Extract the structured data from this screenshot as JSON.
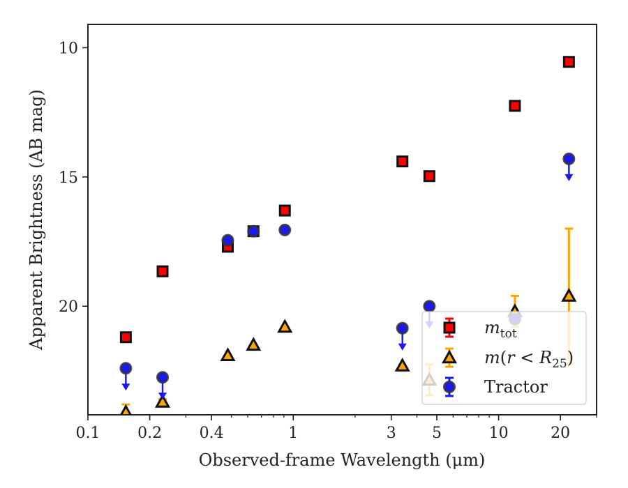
{
  "chart_data": {
    "type": "scatter",
    "xlabel": "Observed-frame Wavelength (μm)",
    "ylabel": "Apparent Brightness (AB mag)",
    "x_scale": "log",
    "xlim": [
      0.1,
      30
    ],
    "ylim": [
      24.2,
      9.1
    ],
    "x_ticks": [
      {
        "value": 0.1,
        "label": "0.1"
      },
      {
        "value": 0.2,
        "label": "0.2"
      },
      {
        "value": 0.4,
        "label": "0.4"
      },
      {
        "value": 1,
        "label": "1"
      },
      {
        "value": 3,
        "label": "3"
      },
      {
        "value": 5,
        "label": "5"
      },
      {
        "value": 10,
        "label": "10"
      },
      {
        "value": 20,
        "label": "20"
      }
    ],
    "y_ticks": [
      {
        "value": 10,
        "label": "10"
      },
      {
        "value": 15,
        "label": "15"
      },
      {
        "value": 20,
        "label": "20"
      }
    ],
    "grid": false,
    "legend_position": "lower-right",
    "series": [
      {
        "name": "m_tot",
        "legend_label": "m",
        "legend_sub": "tot",
        "marker": "square",
        "color": "#ff0000",
        "edge": "#111111",
        "points": [
          {
            "x": 0.153,
            "y": 21.2
          },
          {
            "x": 0.231,
            "y": 18.65
          },
          {
            "x": 0.48,
            "y": 17.7
          },
          {
            "x": 0.64,
            "y": 17.1
          },
          {
            "x": 0.91,
            "y": 16.3
          },
          {
            "x": 3.4,
            "y": 14.4
          },
          {
            "x": 4.6,
            "y": 14.97
          },
          {
            "x": 12.0,
            "y": 12.25
          },
          {
            "x": 22.0,
            "y": 10.55
          }
        ]
      },
      {
        "name": "m(r < R25)",
        "legend_label": "m(r < R",
        "legend_sub": "25",
        "marker": "triangle",
        "color": "#ffa500",
        "edge": "#111111",
        "points": [
          {
            "x": 0.153,
            "y": 24.1,
            "yerr": 0.3
          },
          {
            "x": 0.231,
            "y": 23.7,
            "yerr": 0.1
          },
          {
            "x": 0.48,
            "y": 21.9
          },
          {
            "x": 0.64,
            "y": 21.5
          },
          {
            "x": 0.91,
            "y": 20.8
          },
          {
            "x": 3.4,
            "y": 22.3
          },
          {
            "x": 4.6,
            "y": 22.85,
            "yerr": 0.6
          },
          {
            "x": 12.0,
            "y": 20.2,
            "yerr": 0.6
          },
          {
            "x": 22.0,
            "y": 19.6,
            "yerr": 2.6
          }
        ]
      },
      {
        "name": "Tractor",
        "legend_label": "Tractor",
        "marker": "circle",
        "color": "#1a1aee",
        "edge": "#333333",
        "points": [
          {
            "x": 0.153,
            "y": 22.4,
            "upper_limit": true
          },
          {
            "x": 0.231,
            "y": 22.75,
            "upper_limit": true
          },
          {
            "x": 0.48,
            "y": 17.45
          },
          {
            "x": 0.64,
            "y": 17.1
          },
          {
            "x": 0.91,
            "y": 17.05
          },
          {
            "x": 3.4,
            "y": 20.85,
            "upper_limit": true
          },
          {
            "x": 4.6,
            "y": 20.0,
            "upper_limit": true
          },
          {
            "x": 12.0,
            "y": 20.5
          },
          {
            "x": 22.0,
            "y": 14.3,
            "upper_limit": true
          }
        ]
      }
    ]
  }
}
